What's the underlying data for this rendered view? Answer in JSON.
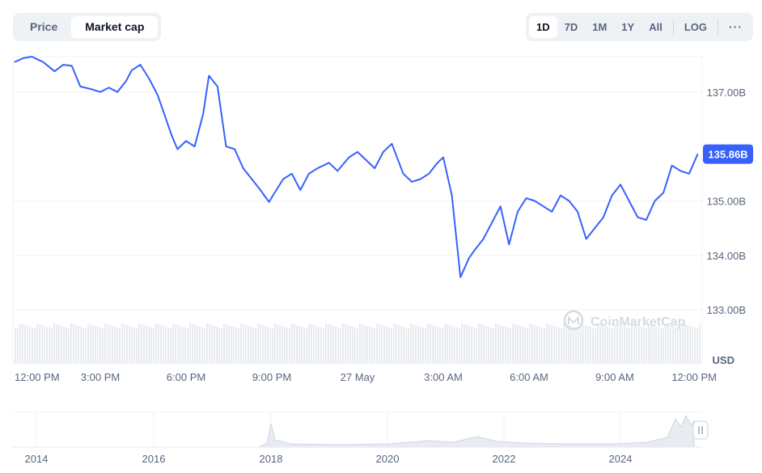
{
  "tabs": {
    "price": "Price",
    "market_cap": "Market cap"
  },
  "ranges": [
    "1D",
    "7D",
    "1M",
    "1Y",
    "All"
  ],
  "log_label": "LOG",
  "more_label": "···",
  "watermark": "CoinMarketCap",
  "currency_label": "USD",
  "current_value_label": "135.86B",
  "colors": {
    "line": "#3861fb",
    "badge": "#3861fb",
    "volume": "#e8ebf0",
    "grid": "#eff2f5"
  },
  "chart_data": {
    "type": "line",
    "y_tick_labels": [
      "137.00B",
      "135.00B",
      "134.00B",
      "133.00B"
    ],
    "y_tick_values": [
      137.0,
      135.0,
      134.0,
      133.0
    ],
    "ylim": [
      132.75,
      137.65
    ],
    "grid": true,
    "x_tick_labels": [
      "12:00 PM",
      "3:00 PM",
      "6:00 PM",
      "9:00 PM",
      "27 May",
      "3:00 AM",
      "6:00 AM",
      "9:00 AM",
      "12:00 PM"
    ],
    "x_tick_values": [
      0,
      3,
      6,
      9,
      12,
      15,
      18,
      21,
      24
    ],
    "x": [
      0,
      0.3,
      0.6,
      1,
      1.4,
      1.7,
      2,
      2.3,
      2.7,
      3,
      3.3,
      3.6,
      3.9,
      4.1,
      4.4,
      4.7,
      5,
      5.3,
      5.5,
      5.7,
      6,
      6.3,
      6.6,
      6.8,
      7.1,
      7.4,
      7.7,
      8,
      8.3,
      8.6,
      8.9,
      9.1,
      9.4,
      9.7,
      10,
      10.3,
      10.6,
      11,
      11.3,
      11.7,
      12,
      12.3,
      12.6,
      12.9,
      13.2,
      13.6,
      13.9,
      14.2,
      14.5,
      14.8,
      15,
      15.3,
      15.6,
      15.9,
      16.1,
      16.4,
      16.7,
      17,
      17.3,
      17.6,
      17.9,
      18.2,
      18.5,
      18.8,
      19.1,
      19.4,
      19.7,
      20,
      20.3,
      20.6,
      20.9,
      21.2,
      21.5,
      21.8,
      22.1,
      22.4,
      22.7,
      23,
      23.3,
      23.6,
      23.9
    ],
    "y": [
      137.55,
      137.62,
      137.65,
      137.55,
      137.38,
      137.5,
      137.48,
      137.1,
      137.05,
      137.0,
      137.08,
      137.0,
      137.2,
      137.4,
      137.5,
      137.25,
      136.95,
      136.5,
      136.2,
      135.95,
      136.1,
      136.0,
      136.6,
      137.3,
      137.1,
      136.0,
      135.95,
      135.6,
      135.4,
      135.2,
      134.98,
      135.15,
      135.4,
      135.5,
      135.2,
      135.5,
      135.6,
      135.7,
      135.55,
      135.8,
      135.9,
      135.75,
      135.6,
      135.9,
      136.05,
      135.5,
      135.35,
      135.4,
      135.5,
      135.7,
      135.8,
      135.1,
      133.6,
      133.95,
      134.1,
      134.3,
      134.6,
      134.9,
      134.2,
      134.8,
      135.05,
      135.0,
      134.9,
      134.8,
      135.1,
      135.0,
      134.8,
      134.3,
      134.5,
      134.7,
      135.1,
      135.3,
      135.0,
      134.7,
      134.65,
      135.0,
      135.15,
      135.65,
      135.55,
      135.5,
      135.86
    ],
    "volume_label": "USD",
    "navigator_x_labels": [
      "2014",
      "2016",
      "2018",
      "2020",
      "2022",
      "2024"
    ]
  }
}
